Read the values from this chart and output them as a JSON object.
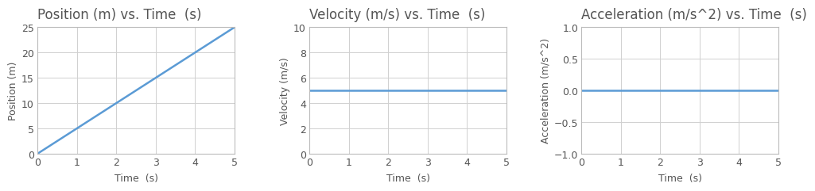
{
  "plots": [
    {
      "title": "Position (m) vs. Time  (s)",
      "xlabel": "Time  (s)",
      "ylabel": "Position (m)",
      "xlim": [
        0,
        5
      ],
      "ylim": [
        0,
        25
      ],
      "xticks": [
        0,
        1,
        2,
        3,
        4,
        5
      ],
      "yticks": [
        0,
        5,
        10,
        15,
        20,
        25
      ],
      "line_x": [
        0,
        5
      ],
      "line_y": [
        0,
        25
      ],
      "line_color": "#5b9bd5"
    },
    {
      "title": "Velocity (m/s) vs. Time  (s)",
      "xlabel": "Time  (s)",
      "ylabel": "Velocity (m/s)",
      "xlim": [
        0,
        5
      ],
      "ylim": [
        0,
        10
      ],
      "xticks": [
        0,
        1,
        2,
        3,
        4,
        5
      ],
      "yticks": [
        0,
        2,
        4,
        6,
        8,
        10
      ],
      "line_x": [
        0,
        5
      ],
      "line_y": [
        5,
        5
      ],
      "line_color": "#5b9bd5"
    },
    {
      "title": "Acceleration (m/s^2) vs. Time  (s)",
      "xlabel": "Time  (s)",
      "ylabel": "Acceleration (m/s^2)",
      "xlim": [
        0,
        5
      ],
      "ylim": [
        -1.0,
        1.0
      ],
      "xticks": [
        0,
        1,
        2,
        3,
        4,
        5
      ],
      "yticks": [
        -1.0,
        -0.5,
        0.0,
        0.5,
        1.0
      ],
      "line_x": [
        0,
        5
      ],
      "line_y": [
        0,
        0
      ],
      "line_color": "#5b9bd5"
    }
  ],
  "fig_bg_color": "#ffffff",
  "axes_bg_color": "#ffffff",
  "grid_color": "#d0d0d0",
  "spine_color": "#bbbbbb",
  "title_color": "#555555",
  "label_color": "#555555",
  "tick_color": "#555555",
  "title_fontsize": 12,
  "label_fontsize": 9,
  "tick_fontsize": 9,
  "line_width": 1.8
}
